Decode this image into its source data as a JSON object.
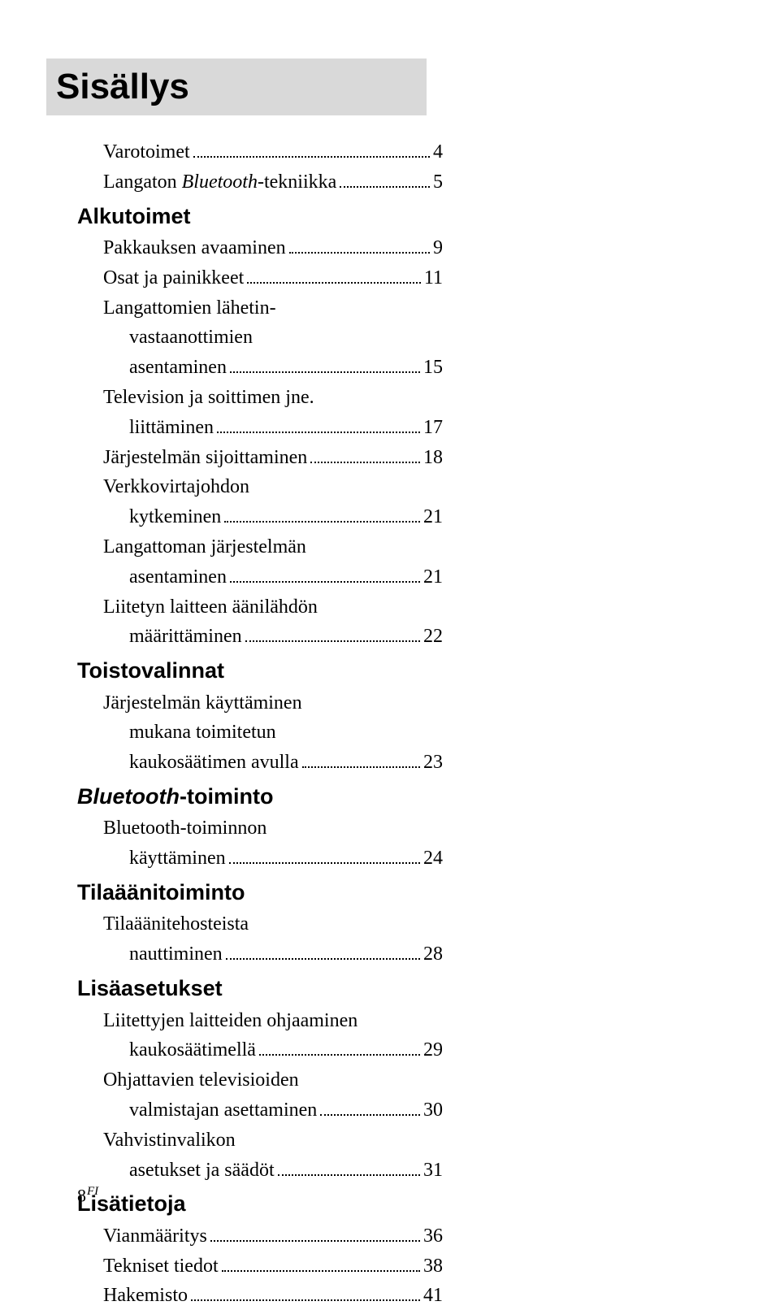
{
  "title": "Sisällys",
  "entries": [
    {
      "kind": "entry",
      "indent": 1,
      "parts": [
        {
          "t": "Varotoimet"
        }
      ],
      "page": "4"
    },
    {
      "kind": "entry",
      "indent": 1,
      "parts": [
        {
          "t": "Langaton "
        },
        {
          "t": "Bluetooth",
          "i": true
        },
        {
          "t": "-tekniikka"
        }
      ],
      "page": "5"
    },
    {
      "kind": "section",
      "parts": [
        {
          "t": "Alkutoimet"
        }
      ]
    },
    {
      "kind": "entry",
      "indent": 1,
      "parts": [
        {
          "t": "Pakkauksen avaaminen"
        }
      ],
      "page": "9"
    },
    {
      "kind": "entry",
      "indent": 1,
      "parts": [
        {
          "t": "Osat ja painikkeet"
        }
      ],
      "page": "11"
    },
    {
      "kind": "cont",
      "indent": 1,
      "parts": [
        {
          "t": "Langattomien lähetin-"
        }
      ]
    },
    {
      "kind": "cont",
      "indent": 2,
      "parts": [
        {
          "t": "vastaanottimien"
        }
      ]
    },
    {
      "kind": "entry",
      "indent": 2,
      "parts": [
        {
          "t": "asentaminen"
        }
      ],
      "page": "15"
    },
    {
      "kind": "cont",
      "indent": 1,
      "parts": [
        {
          "t": "Television ja soittimen jne."
        }
      ]
    },
    {
      "kind": "entry",
      "indent": 2,
      "parts": [
        {
          "t": "liittäminen"
        }
      ],
      "page": "17"
    },
    {
      "kind": "entry",
      "indent": 1,
      "parts": [
        {
          "t": "Järjestelmän sijoittaminen"
        }
      ],
      "page": "18"
    },
    {
      "kind": "cont",
      "indent": 1,
      "parts": [
        {
          "t": "Verkkovirtajohdon"
        }
      ]
    },
    {
      "kind": "entry",
      "indent": 2,
      "parts": [
        {
          "t": "kytkeminen"
        }
      ],
      "page": "21"
    },
    {
      "kind": "cont",
      "indent": 1,
      "parts": [
        {
          "t": "Langattoman järjestelmän"
        }
      ]
    },
    {
      "kind": "entry",
      "indent": 2,
      "parts": [
        {
          "t": "asentaminen"
        }
      ],
      "page": "21"
    },
    {
      "kind": "cont",
      "indent": 1,
      "parts": [
        {
          "t": "Liitetyn laitteen äänilähdön"
        }
      ]
    },
    {
      "kind": "entry",
      "indent": 2,
      "parts": [
        {
          "t": "määrittäminen"
        }
      ],
      "page": "22"
    },
    {
      "kind": "section",
      "parts": [
        {
          "t": "Toistovalinnat"
        }
      ]
    },
    {
      "kind": "cont",
      "indent": 1,
      "parts": [
        {
          "t": "Järjestelmän käyttäminen"
        }
      ]
    },
    {
      "kind": "cont",
      "indent": 2,
      "parts": [
        {
          "t": "mukana toimitetun"
        }
      ]
    },
    {
      "kind": "entry",
      "indent": 2,
      "parts": [
        {
          "t": "kaukosäätimen avulla"
        }
      ],
      "page": "23"
    },
    {
      "kind": "section",
      "parts": [
        {
          "t": "Bluetooth",
          "i": true
        },
        {
          "t": "-toiminto"
        }
      ]
    },
    {
      "kind": "cont",
      "indent": 1,
      "parts": [
        {
          "t": "Bluetooth",
          "i": true
        },
        {
          "t": "-toiminnon"
        }
      ]
    },
    {
      "kind": "entry",
      "indent": 2,
      "parts": [
        {
          "t": "käyttäminen"
        }
      ],
      "page": "24"
    },
    {
      "kind": "section",
      "parts": [
        {
          "t": "Tilaäänitoiminto"
        }
      ]
    },
    {
      "kind": "cont",
      "indent": 1,
      "parts": [
        {
          "t": "Tilaäänitehosteista"
        }
      ]
    },
    {
      "kind": "entry",
      "indent": 2,
      "parts": [
        {
          "t": "nauttiminen"
        }
      ],
      "page": "28"
    },
    {
      "kind": "section",
      "parts": [
        {
          "t": "Lisäasetukset"
        }
      ]
    },
    {
      "kind": "cont",
      "indent": 1,
      "parts": [
        {
          "t": "Liitettyjen laitteiden ohjaaminen"
        }
      ]
    },
    {
      "kind": "entry",
      "indent": 2,
      "parts": [
        {
          "t": "kaukosäätimellä"
        }
      ],
      "page": "29"
    },
    {
      "kind": "cont",
      "indent": 1,
      "parts": [
        {
          "t": "Ohjattavien televisioiden"
        }
      ]
    },
    {
      "kind": "entry",
      "indent": 2,
      "parts": [
        {
          "t": "valmistajan asettaminen"
        }
      ],
      "page": "30"
    },
    {
      "kind": "cont",
      "indent": 1,
      "parts": [
        {
          "t": "Vahvistinvalikon"
        }
      ]
    },
    {
      "kind": "entry",
      "indent": 2,
      "parts": [
        {
          "t": "asetukset ja säädöt"
        }
      ],
      "page": "31"
    },
    {
      "kind": "section",
      "parts": [
        {
          "t": "Lisätietoja"
        }
      ]
    },
    {
      "kind": "entry",
      "indent": 1,
      "parts": [
        {
          "t": "Vianmääritys"
        }
      ],
      "page": "36"
    },
    {
      "kind": "entry",
      "indent": 1,
      "parts": [
        {
          "t": "Tekniset tiedot"
        }
      ],
      "page": "38"
    },
    {
      "kind": "entry",
      "indent": 1,
      "parts": [
        {
          "t": "Hakemisto"
        }
      ],
      "page": "41"
    }
  ],
  "footer": {
    "page": "8",
    "lang": "FI"
  }
}
